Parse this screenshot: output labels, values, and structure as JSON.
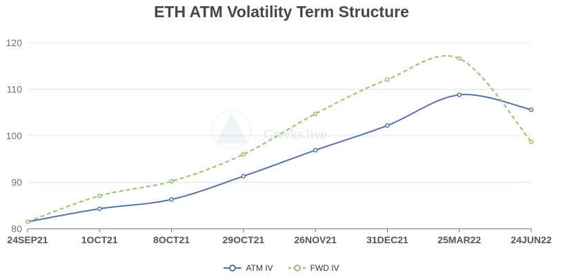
{
  "chart_data": {
    "type": "line",
    "title": "ETH ATM Volatility Term Structure",
    "categories": [
      "24SEP21",
      "1OCT21",
      "8OCT21",
      "29OCT21",
      "26NOV21",
      "31DEC21",
      "25MAR22",
      "24JUN22"
    ],
    "ylim": [
      80,
      120
    ],
    "yticks": [
      80,
      90,
      100,
      110,
      120
    ],
    "grid": true,
    "legend_position": "bottom",
    "series": [
      {
        "name": "ATM IV",
        "values": [
          81.5,
          84.3,
          86.3,
          91.3,
          96.9,
          102.2,
          108.8,
          105.6
        ],
        "color": "#5470a6",
        "style": "solid"
      },
      {
        "name": "FWD IV",
        "values": [
          81.5,
          87.1,
          90.2,
          96.0,
          104.7,
          112.1,
          116.6,
          98.7
        ],
        "color": "#8fc466",
        "style": "dashed"
      }
    ]
  },
  "watermark": {
    "text": "Greeks.live"
  }
}
